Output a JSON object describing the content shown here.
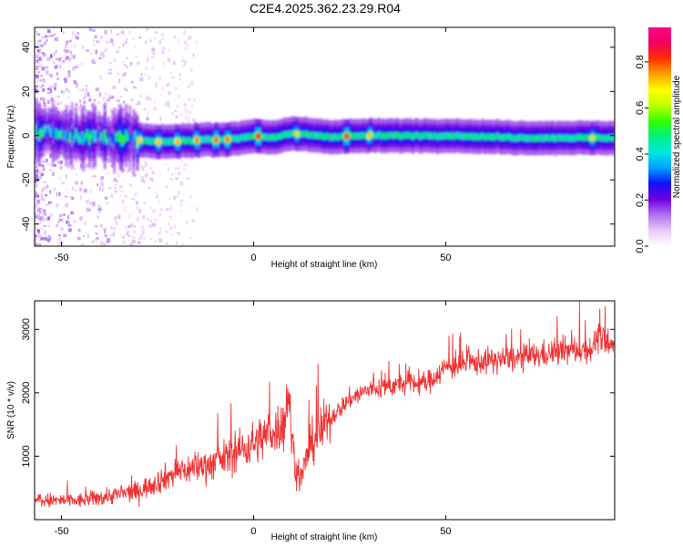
{
  "figure": {
    "title": "C2E4.2025.362.23.29.R04"
  },
  "chart_data": [
    {
      "type": "heatmap",
      "xlabel": "Height of straight line (km)",
      "ylabel": "Frequency (Hz)",
      "xlim": [
        -57,
        94
      ],
      "ylim": [
        -50,
        49
      ],
      "xticks": [
        "-50",
        "0",
        "50"
      ],
      "yticks": [
        "40",
        "20",
        "0",
        "-20",
        "-40"
      ],
      "colorbar": {
        "label": "Normalized spectral amplitude",
        "range": [
          0,
          0.95
        ],
        "ticks": [
          "0.0",
          "0.2",
          "0.4",
          "0.6",
          "0.8"
        ],
        "colormap": [
          "#ffffff",
          "#e8c8f8",
          "#b070f0",
          "#7000e0",
          "#1010f8",
          "#00a0ff",
          "#00e8e0",
          "#00f080",
          "#30ff00",
          "#c0ff00",
          "#ffff00",
          "#ffa000",
          "#ff3000",
          "#f00060",
          "#ff0088"
        ]
      },
      "band": {
        "center_hz": [
          [
            -57,
            2
          ],
          [
            -45,
            0
          ],
          [
            -35,
            -1
          ],
          [
            -25,
            -3
          ],
          [
            -15,
            -2
          ],
          [
            -5,
            -1.5
          ],
          [
            0,
            0
          ],
          [
            5,
            -1
          ],
          [
            10,
            1
          ],
          [
            20,
            -0.5
          ],
          [
            30,
            0
          ],
          [
            50,
            0
          ],
          [
            70,
            -1
          ],
          [
            85,
            -1
          ],
          [
            94,
            -1
          ]
        ],
        "peaks": [
          [
            -30,
            -3,
            0.72
          ],
          [
            -25,
            -3,
            0.75
          ],
          [
            -20,
            -2,
            0.78
          ],
          [
            -15,
            -2,
            0.82
          ],
          [
            -10,
            -1.5,
            0.85
          ],
          [
            -7,
            -1.5,
            0.83
          ],
          [
            1,
            0,
            0.92
          ],
          [
            11,
            1,
            0.7
          ],
          [
            24,
            0,
            0.9
          ],
          [
            30,
            0,
            0.75
          ],
          [
            88,
            -1,
            0.7
          ]
        ]
      }
    },
    {
      "type": "line",
      "xlabel": "Height of straight line (km)",
      "ylabel": "SNR (10 * v/v)",
      "xlim": [
        -57,
        94
      ],
      "ylim": [
        0,
        3450
      ],
      "xticks": [
        "-50",
        "0",
        "50"
      ],
      "yticks": [
        "1000",
        "2000",
        "3000"
      ],
      "color": "#f03030",
      "trend": [
        [
          -57,
          300
        ],
        [
          -45,
          300
        ],
        [
          -30,
          450
        ],
        [
          -20,
          750
        ],
        [
          -10,
          900
        ],
        [
          0,
          1200
        ],
        [
          5,
          1400
        ],
        [
          8,
          1500
        ],
        [
          9,
          2100
        ],
        [
          10,
          1250
        ],
        [
          11,
          800
        ],
        [
          12,
          600
        ],
        [
          15,
          1200
        ],
        [
          20,
          1600
        ],
        [
          25,
          1900
        ],
        [
          30,
          2050
        ],
        [
          40,
          2150
        ],
        [
          45,
          2150
        ],
        [
          50,
          2400
        ],
        [
          60,
          2500
        ],
        [
          70,
          2550
        ],
        [
          80,
          2650
        ],
        [
          88,
          2700
        ],
        [
          90,
          2900
        ],
        [
          92,
          2750
        ],
        [
          94,
          2700
        ]
      ]
    }
  ]
}
